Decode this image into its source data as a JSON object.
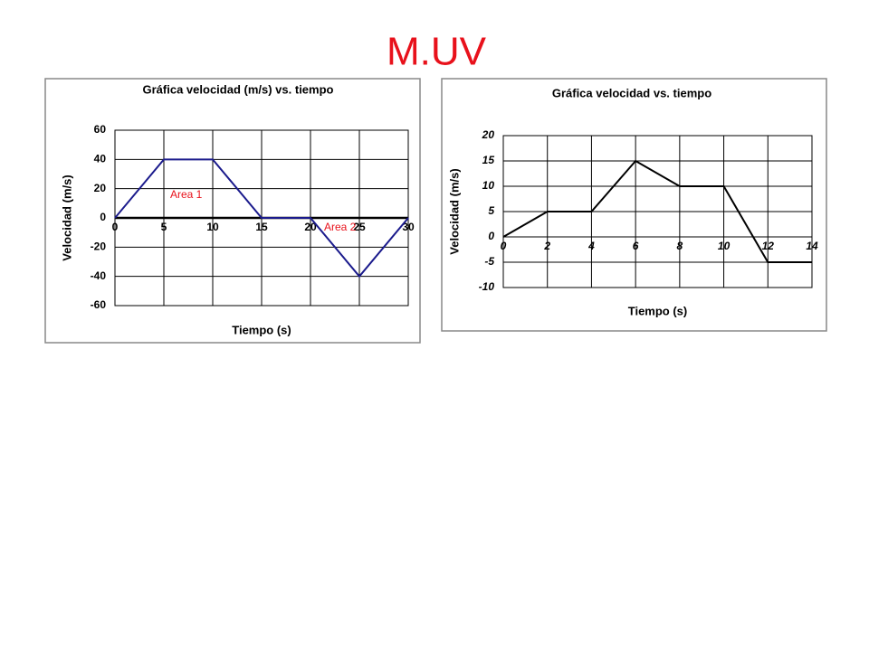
{
  "title": "M.UV",
  "chart_data": [
    {
      "type": "line",
      "title": "Gráfica velocidad (m/s) vs. tiempo",
      "x_label": "Tiempo (s)",
      "y_label": "Velocidad (m/s)",
      "x": [
        0,
        5,
        10,
        15,
        20,
        25,
        30
      ],
      "values": [
        0,
        40,
        40,
        0,
        0,
        -40,
        0
      ],
      "color": "#1a1a8c",
      "xlim": [
        0,
        30
      ],
      "xticks": [
        0,
        5,
        10,
        15,
        20,
        25,
        30
      ],
      "ylim": [
        -60,
        60
      ],
      "yticks": [
        -60,
        -40,
        -20,
        0,
        20,
        40,
        60
      ],
      "grid": true,
      "annotations": [
        "Area 1",
        "Area 2"
      ]
    },
    {
      "type": "line",
      "title": "Gráfica velocidad vs. tiempo",
      "x_label": "Tiempo (s)",
      "y_label": "Velocidad (m/s)",
      "x": [
        0,
        2,
        4,
        6,
        8,
        10,
        12,
        14
      ],
      "values": [
        0,
        5,
        5,
        15,
        10,
        10,
        -5,
        -5
      ],
      "color": "#000000",
      "xlim": [
        0,
        14
      ],
      "xticks": [
        0,
        2,
        4,
        6,
        8,
        10,
        12,
        14
      ],
      "ylim": [
        -10,
        20
      ],
      "yticks": [
        -10,
        -5,
        0,
        5,
        10,
        15,
        20
      ],
      "grid": true
    }
  ]
}
